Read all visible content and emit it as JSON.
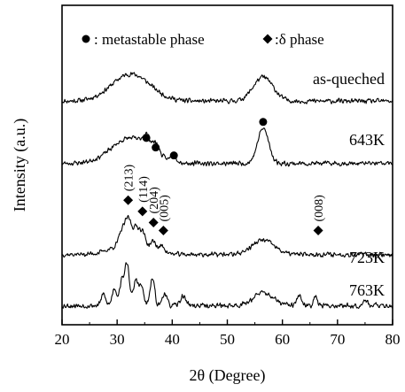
{
  "chart_data": {
    "type": "line",
    "xlabel": "2θ (Degree)",
    "ylabel": "Intensity (a.u.)",
    "xlim": [
      20,
      80
    ],
    "xticks": [
      "20",
      "30",
      "40",
      "50",
      "60",
      "70",
      "80"
    ],
    "grid": false,
    "legend": {
      "placement": "top",
      "entries": [
        {
          "symbol": "circle",
          "label": ": metastable phase"
        },
        {
          "symbol": "diamond",
          "label": ":δ phase"
        }
      ]
    },
    "series": [
      {
        "name": "as-queched",
        "baseline": 7.0,
        "peaks": [
          {
            "center": 32.5,
            "height": 0.85,
            "width": 3.5
          },
          {
            "center": 56.5,
            "height": 0.75,
            "width": 1.8
          }
        ],
        "noise": 0.18,
        "seed": 11
      },
      {
        "name": "643K",
        "baseline": 5.05,
        "peaks": [
          {
            "center": 32.5,
            "height": 0.8,
            "width": 3.5
          },
          {
            "center": 35.3,
            "height": 0.35,
            "width": 0.6
          },
          {
            "center": 37.0,
            "height": 0.3,
            "width": 0.6
          },
          {
            "center": 40.3,
            "height": 0.2,
            "width": 0.5
          },
          {
            "center": 56.5,
            "height": 1.1,
            "width": 1.0
          }
        ],
        "noise": 0.18,
        "seed": 23
      },
      {
        "name": "723K",
        "baseline": 2.2,
        "peaks": [
          {
            "center": 30.8,
            "height": 0.35,
            "width": 0.5
          },
          {
            "center": 32.0,
            "height": 0.75,
            "width": 0.6
          },
          {
            "center": 33.5,
            "height": 0.45,
            "width": 0.5
          },
          {
            "center": 34.6,
            "height": 0.4,
            "width": 0.5
          },
          {
            "center": 36.6,
            "height": 0.25,
            "width": 0.5
          },
          {
            "center": 38.2,
            "height": 0.2,
            "width": 0.5
          },
          {
            "center": 32.5,
            "height": 0.4,
            "width": 3.0
          },
          {
            "center": 56.5,
            "height": 0.45,
            "width": 2.0
          }
        ],
        "noise": 0.18,
        "seed": 37
      },
      {
        "name": "763K",
        "baseline": 0.6,
        "peaks": [
          {
            "center": 27.5,
            "height": 0.35,
            "width": 0.4
          },
          {
            "center": 29.5,
            "height": 0.55,
            "width": 0.4
          },
          {
            "center": 30.8,
            "height": 0.7,
            "width": 0.4
          },
          {
            "center": 31.8,
            "height": 1.3,
            "width": 0.45
          },
          {
            "center": 33.4,
            "height": 0.8,
            "width": 0.4
          },
          {
            "center": 34.4,
            "height": 0.6,
            "width": 0.4
          },
          {
            "center": 36.4,
            "height": 0.85,
            "width": 0.4
          },
          {
            "center": 38.6,
            "height": 0.4,
            "width": 0.4
          },
          {
            "center": 42.0,
            "height": 0.3,
            "width": 0.5
          },
          {
            "center": 56.5,
            "height": 0.4,
            "width": 1.8
          },
          {
            "center": 63.0,
            "height": 0.3,
            "width": 0.4
          },
          {
            "center": 66.0,
            "height": 0.35,
            "width": 0.3
          },
          {
            "center": 75.0,
            "height": 0.2,
            "width": 0.4
          }
        ],
        "noise": 0.2,
        "seed": 53
      }
    ],
    "markers": [
      {
        "symbol": "circle",
        "x": 35.3,
        "y": 5.85
      },
      {
        "symbol": "circle",
        "x": 37.0,
        "y": 5.55
      },
      {
        "symbol": "circle",
        "x": 40.3,
        "y": 5.3
      },
      {
        "symbol": "circle",
        "x": 56.5,
        "y": 6.35
      },
      {
        "symbol": "diamond",
        "x": 32.0,
        "y": 3.9,
        "label": "(213)"
      },
      {
        "symbol": "diamond",
        "x": 34.6,
        "y": 3.55,
        "label": "(114)"
      },
      {
        "symbol": "diamond",
        "x": 36.6,
        "y": 3.2,
        "label": "(204)"
      },
      {
        "symbol": "diamond",
        "x": 38.4,
        "y": 2.95,
        "label": "(005)"
      },
      {
        "symbol": "diamond",
        "x": 66.5,
        "y": 2.95,
        "label": "(008)"
      }
    ],
    "ylim": [
      0,
      10
    ]
  }
}
